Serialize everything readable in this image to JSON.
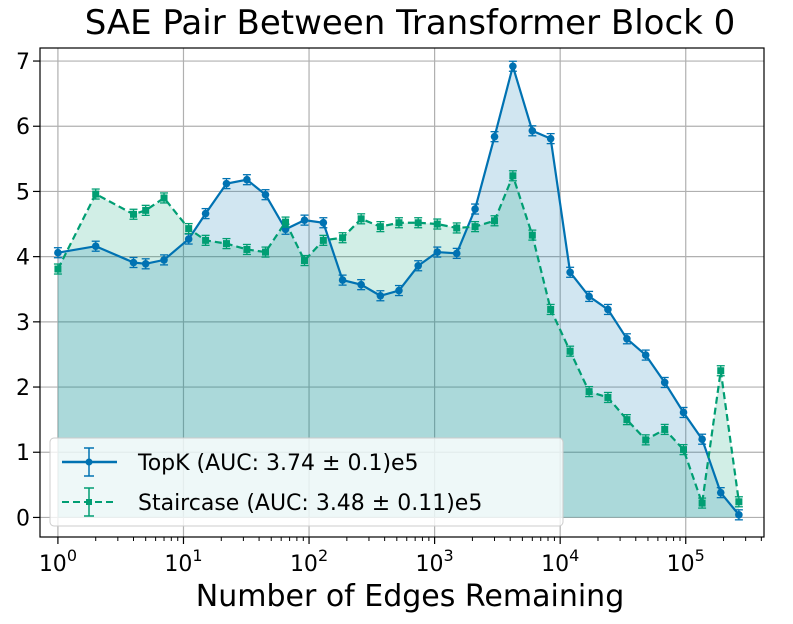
{
  "chart_data": {
    "type": "line",
    "title": "SAE Pair Between Transformer Block 0",
    "xlabel": "Number of Edges Remaining",
    "ylabel": "",
    "x_scale": "log",
    "xlim": [
      0.72,
      420000
    ],
    "ylim": [
      -0.3,
      7.2
    ],
    "x_ticks": [
      1,
      10,
      100,
      1000,
      10000,
      100000
    ],
    "x_tick_base": "10",
    "x_tick_exponents": [
      "0",
      "1",
      "2",
      "3",
      "4",
      "5"
    ],
    "y_ticks": [
      "0",
      "1",
      "2",
      "3",
      "4",
      "5",
      "6",
      "7"
    ],
    "grid": true,
    "legend_position": "lower-left",
    "series": [
      {
        "name": "TopK (AUC: 3.74 ± 0.1)e5",
        "color": "#0072b2",
        "linestyle": "solid",
        "marker": "circle",
        "x": [
          1,
          2,
          4,
          5,
          7,
          11,
          15,
          22,
          32,
          45,
          65,
          92,
          130,
          185,
          260,
          370,
          520,
          740,
          1050,
          1500,
          2100,
          3000,
          4200,
          6000,
          8400,
          12000,
          17000,
          24000,
          34000,
          48000,
          68000,
          96000,
          135000,
          190000,
          265000
        ],
        "y": [
          4.06,
          4.16,
          3.91,
          3.89,
          3.95,
          4.27,
          4.66,
          5.12,
          5.18,
          4.95,
          4.42,
          4.56,
          4.52,
          3.64,
          3.57,
          3.4,
          3.48,
          3.86,
          4.07,
          4.05,
          4.73,
          5.84,
          6.92,
          5.93,
          5.81,
          3.76,
          3.39,
          3.19,
          2.74,
          2.49,
          2.07,
          1.61,
          1.2,
          0.38,
          0.04
        ]
      },
      {
        "name": "Staircase (AUC: 3.48 ± 0.11)e5",
        "color": "#009e73",
        "linestyle": "dashed",
        "marker": "square",
        "x": [
          1,
          2,
          4,
          5,
          7,
          11,
          15,
          22,
          32,
          45,
          65,
          92,
          130,
          185,
          260,
          370,
          520,
          740,
          1050,
          1500,
          2100,
          3000,
          4200,
          6000,
          8400,
          12000,
          17000,
          24000,
          34000,
          48000,
          68000,
          96000,
          135000,
          190000,
          265000
        ],
        "y": [
          3.81,
          4.96,
          4.65,
          4.71,
          4.9,
          4.43,
          4.25,
          4.2,
          4.11,
          4.07,
          4.53,
          3.94,
          4.25,
          4.29,
          4.58,
          4.46,
          4.52,
          4.52,
          4.5,
          4.44,
          4.46,
          4.55,
          5.24,
          4.33,
          3.19,
          2.55,
          1.93,
          1.84,
          1.5,
          1.19,
          1.35,
          1.04,
          0.22,
          2.25,
          0.24
        ]
      }
    ]
  }
}
